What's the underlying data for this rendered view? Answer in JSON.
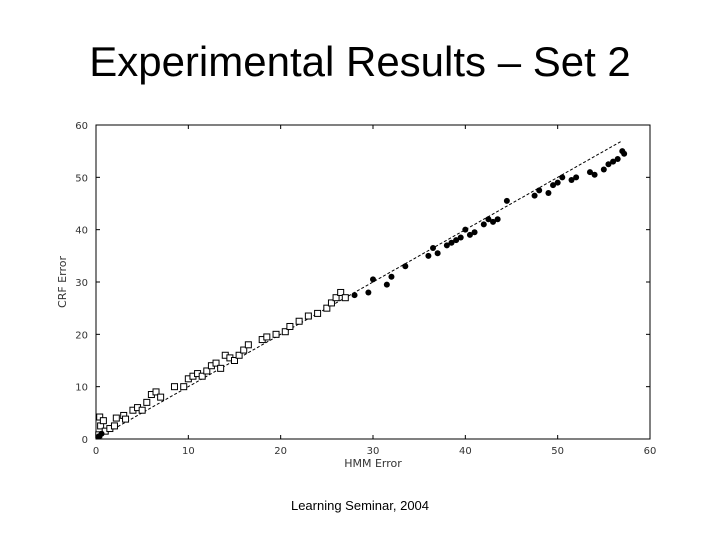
{
  "slide": {
    "title": "Experimental Results – Set 2",
    "footer": "Learning Seminar, 2004"
  },
  "chart_data": {
    "type": "scatter",
    "title": "",
    "xlabel": "HMM Error",
    "ylabel": "CRF Error",
    "xlim": [
      0,
      60
    ],
    "ylim": [
      0,
      60
    ],
    "xticks": [
      0,
      10,
      20,
      30,
      40,
      50,
      60
    ],
    "yticks": [
      0,
      10,
      20,
      30,
      40,
      50,
      60
    ],
    "grid": false,
    "legend": "none",
    "series": [
      {
        "marker": "open-square",
        "points": [
          [
            0.3,
            0.8
          ],
          [
            0.5,
            2.5
          ],
          [
            0.4,
            4.2
          ],
          [
            0.8,
            3.5
          ],
          [
            1,
            1.5
          ],
          [
            1.5,
            2
          ],
          [
            2,
            2.5
          ],
          [
            2.2,
            4
          ],
          [
            3,
            4.5
          ],
          [
            3.2,
            3.8
          ],
          [
            4,
            5.5
          ],
          [
            4.5,
            6
          ],
          [
            5,
            5.5
          ],
          [
            5.5,
            7
          ],
          [
            6,
            8.5
          ],
          [
            6.5,
            9
          ],
          [
            7,
            8
          ],
          [
            8.5,
            10
          ],
          [
            9.5,
            10
          ],
          [
            10,
            11.5
          ],
          [
            10.5,
            12
          ],
          [
            11,
            12.5
          ],
          [
            11.5,
            12
          ],
          [
            12,
            13
          ],
          [
            12.5,
            14
          ],
          [
            13,
            14.5
          ],
          [
            13.5,
            13.5
          ],
          [
            14,
            16
          ],
          [
            14.5,
            15.5
          ],
          [
            15,
            15
          ],
          [
            15.5,
            16
          ],
          [
            16,
            17
          ],
          [
            16.5,
            18
          ],
          [
            18,
            19
          ],
          [
            18.5,
            19.5
          ],
          [
            19.5,
            20
          ],
          [
            20.5,
            20.5
          ],
          [
            21,
            21.5
          ],
          [
            22,
            22.5
          ],
          [
            23,
            23.5
          ],
          [
            24,
            24
          ],
          [
            25,
            25
          ],
          [
            25.5,
            26
          ],
          [
            26,
            27
          ],
          [
            26.5,
            28
          ],
          [
            27,
            27
          ]
        ]
      },
      {
        "marker": "filled-circle",
        "points": [
          [
            0.3,
            0.5
          ],
          [
            0.6,
            1
          ],
          [
            28,
            27.5
          ],
          [
            29.5,
            28
          ],
          [
            30,
            30.5
          ],
          [
            31.5,
            29.5
          ],
          [
            32,
            31
          ],
          [
            33.5,
            33
          ],
          [
            36,
            35
          ],
          [
            36.5,
            36.5
          ],
          [
            37,
            35.5
          ],
          [
            38,
            37
          ],
          [
            38.5,
            37.5
          ],
          [
            39,
            38
          ],
          [
            39.5,
            38.5
          ],
          [
            40,
            40
          ],
          [
            40.5,
            39
          ],
          [
            41,
            39.5
          ],
          [
            42,
            41
          ],
          [
            42.5,
            42
          ],
          [
            43,
            41.5
          ],
          [
            43.5,
            42
          ],
          [
            44.5,
            45.5
          ],
          [
            47.5,
            46.5
          ],
          [
            48,
            47.5
          ],
          [
            49,
            47
          ],
          [
            49.5,
            48.5
          ],
          [
            50,
            49
          ],
          [
            50.5,
            50
          ],
          [
            51.5,
            49.5
          ],
          [
            52,
            50
          ],
          [
            53.5,
            51
          ],
          [
            54,
            50.5
          ],
          [
            55,
            51.5
          ],
          [
            55.5,
            52.5
          ],
          [
            56,
            53
          ],
          [
            56.5,
            53.5
          ],
          [
            57,
            55
          ],
          [
            57.2,
            54.5
          ]
        ]
      }
    ],
    "reference_line": {
      "x": [
        0,
        57
      ],
      "y": [
        0,
        57
      ],
      "style": "dashed"
    }
  }
}
